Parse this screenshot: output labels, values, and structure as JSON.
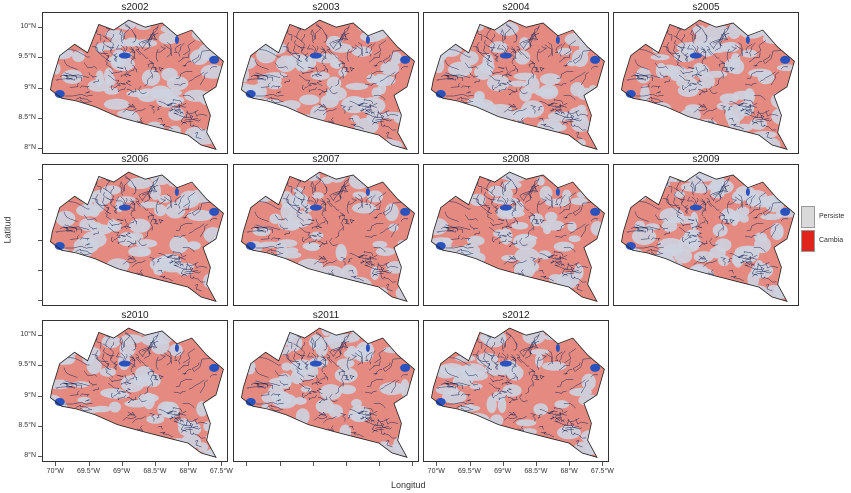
{
  "panels": [
    {
      "label": "s2002",
      "persist": 0.42
    },
    {
      "label": "s2003",
      "persist": 0.52
    },
    {
      "label": "s2004",
      "persist": 0.45
    },
    {
      "label": "s2005",
      "persist": 0.55
    },
    {
      "label": "s2006",
      "persist": 0.48
    },
    {
      "label": "s2007",
      "persist": 0.46
    },
    {
      "label": "s2008",
      "persist": 0.47
    },
    {
      "label": "s2009",
      "persist": 0.58
    },
    {
      "label": "s2010",
      "persist": 0.4
    },
    {
      "label": "s2011",
      "persist": 0.5
    },
    {
      "label": "s2012",
      "persist": 0.44
    }
  ],
  "axes": {
    "y_title": "Latitud",
    "x_title": "Longitud",
    "y_ticks": [
      "10°N",
      "9.5°N",
      "9°N",
      "8.5°N",
      "8°N"
    ],
    "x_ticks": [
      "70°W",
      "69.5°W",
      "69°W",
      "68.5°W",
      "68°W",
      "67.5°W"
    ],
    "ylim": [
      7.9,
      10.25
    ],
    "xlim": [
      -70.2,
      -67.4
    ]
  },
  "legend": {
    "items": [
      {
        "label": "Persiste",
        "color": "#d9d9d9"
      },
      {
        "label": "Cambia",
        "color": "#e0241b"
      }
    ]
  },
  "colors": {
    "persist": "#cdd3e0",
    "change": "#e58a80",
    "drainage": "#1d2a5a",
    "water": "#2a52be",
    "outline": "#222222"
  }
}
